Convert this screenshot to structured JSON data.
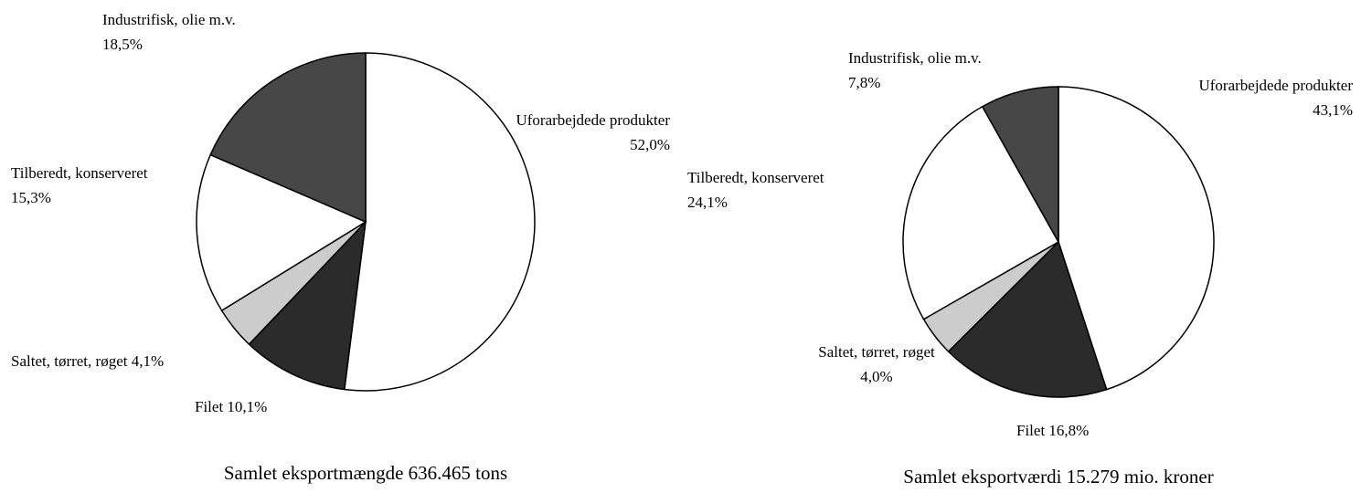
{
  "chart_data": [
    {
      "type": "pie",
      "title": "Samlet eksportmængde 636.465 tons",
      "categories": [
        "Uforarbejdede produkter",
        "Filet",
        "Saltet, tørret, røget",
        "Tilberedt, konserveret",
        "Industrifisk, olie m.v."
      ],
      "values": [
        52.0,
        10.1,
        4.1,
        15.3,
        18.5
      ],
      "value_labels": [
        "52,0%",
        "10,1%",
        "4,1%",
        "15,3%",
        "18,5%"
      ],
      "colors": [
        "#ffffff",
        "#2b2b2b",
        "#cccccc",
        "#ffffff",
        "#474747"
      ]
    },
    {
      "type": "pie",
      "title": "Samlet eksportværdi 15.279 mio. kroner",
      "categories": [
        "Uforarbejdede produkter",
        "Filet",
        "Saltet, tørret, røget",
        "Tilberedt, konserveret",
        "Industrifisk, olie m.v."
      ],
      "values": [
        43.1,
        16.8,
        4.0,
        24.1,
        7.8
      ],
      "value_labels": [
        "43,1%",
        "16,8%",
        "4,0%",
        "24,1%",
        "7,8%"
      ],
      "colors": [
        "#ffffff",
        "#2b2b2b",
        "#cccccc",
        "#ffffff",
        "#474747"
      ]
    }
  ]
}
